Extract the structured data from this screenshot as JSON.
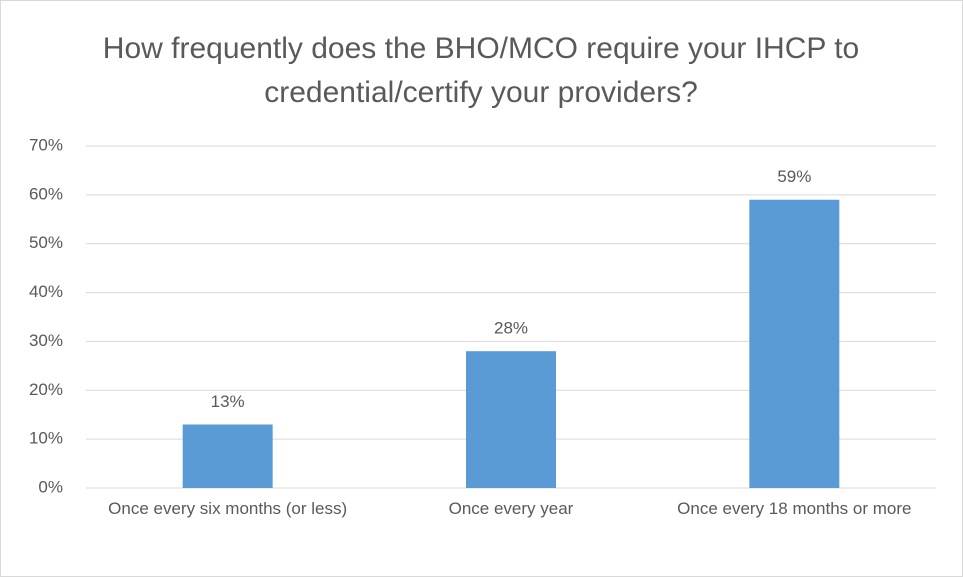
{
  "chart_data": {
    "type": "bar",
    "title": "How frequently does the BHO/MCO require your IHCP to credential/certify your providers?",
    "categories": [
      "Once every six months (or less)",
      "Once every year",
      "Once every 18 months or more"
    ],
    "values": [
      13,
      28,
      59
    ],
    "value_labels": [
      "13%",
      "28%",
      "59%"
    ],
    "color": "#5b9bd5",
    "ylim": [
      0,
      70
    ],
    "yticks": [
      {
        "value": 0,
        "label": "0%"
      },
      {
        "value": 10,
        "label": "10%"
      },
      {
        "value": 20,
        "label": "20%"
      },
      {
        "value": 30,
        "label": "30%"
      },
      {
        "value": 40,
        "label": "40%"
      },
      {
        "value": 50,
        "label": "50%"
      },
      {
        "value": 60,
        "label": "60%"
      },
      {
        "value": 70,
        "label": "70%"
      }
    ],
    "grid": true
  }
}
